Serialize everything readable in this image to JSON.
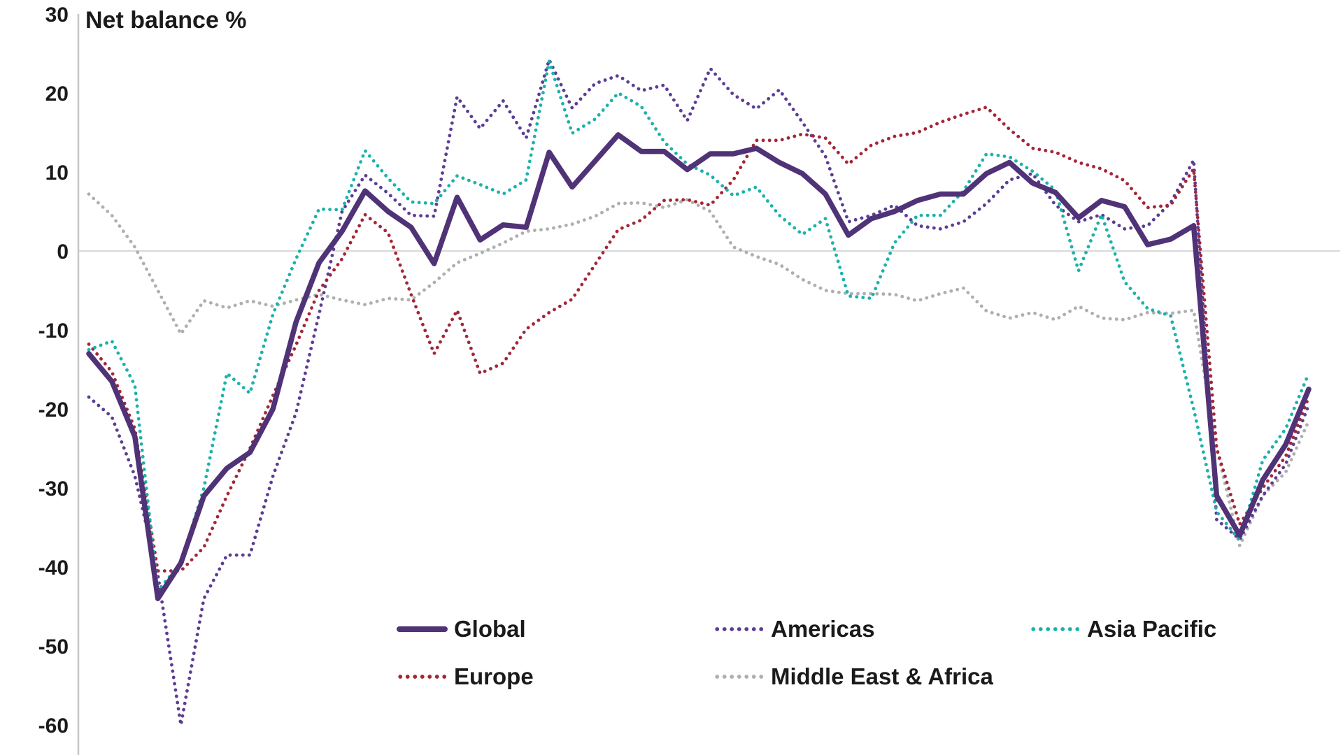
{
  "title": "Net balance %",
  "colors": {
    "global": "#503276",
    "americas": "#5B3D94",
    "asia_pacific": "#1CB2AB",
    "europe": "#A32638",
    "middle_east_africa": "#AFAFAF",
    "zero_line": "#D9D9D9",
    "axis_line": "#C6C6C6",
    "text": "#1a1a1a",
    "background": "#ffffff"
  },
  "y_axis": {
    "label": "Net balance %",
    "ticks": [
      30,
      20,
      10,
      0,
      -10,
      -20,
      -30,
      -40,
      -50,
      -60
    ],
    "min": -60,
    "max": 30
  },
  "x_axis": {
    "labels_visible": false,
    "points": 54
  },
  "legend": {
    "items": [
      {
        "label": "Global",
        "style": "solid",
        "color_key": "global"
      },
      {
        "label": "Americas",
        "style": "dotted",
        "color_key": "americas"
      },
      {
        "label": "Asia Pacific",
        "style": "dotted",
        "color_key": "asia_pacific"
      },
      {
        "label": "Europe",
        "style": "dotted",
        "color_key": "europe"
      },
      {
        "label": "Middle East & Africa",
        "style": "dotted",
        "color_key": "middle_east_africa"
      }
    ]
  },
  "chart_data": {
    "type": "line",
    "title": "Net balance %",
    "xlabel": "",
    "ylabel": "Net balance %",
    "ylim": [
      -60,
      30
    ],
    "grid": "zero-line-only",
    "legend_position": "bottom-center",
    "x": "54 unlabeled quarterly observations",
    "series": [
      {
        "name": "Global",
        "style": "solid",
        "color": "#503276",
        "values": [
          -13,
          -16.5,
          -23.5,
          -44,
          -39.5,
          -31,
          -27.5,
          -25.5,
          -20,
          -9,
          -1.5,
          2.5,
          7.6,
          5,
          3,
          -1.6,
          6.8,
          1.4,
          3.3,
          3,
          12.5,
          8.1,
          11.4,
          14.7,
          12.6,
          12.6,
          10.3,
          12.3,
          12.3,
          13,
          11.2,
          9.8,
          7.2,
          2,
          4.1,
          5,
          6.4,
          7.2,
          7.2,
          9.8,
          11.2,
          8.6,
          7.4,
          4.2,
          6.4,
          5.6,
          0.8,
          1.5,
          3.2,
          -31,
          -36,
          -29,
          -24.5,
          -17.5
        ]
      },
      {
        "name": "Americas",
        "style": "dotted",
        "color": "#5B3D94",
        "values": [
          -18.5,
          -21,
          -28.5,
          -41,
          -60,
          -44,
          -38.5,
          -38.5,
          -28.5,
          -20.5,
          -8,
          5,
          9.6,
          7.3,
          4.5,
          4.4,
          19.5,
          15.5,
          19,
          14.3,
          24.2,
          18.1,
          21.2,
          22.2,
          20.3,
          21,
          16.5,
          23.1,
          19.8,
          18,
          20.4,
          16.3,
          12,
          3.7,
          4.5,
          5.8,
          3.2,
          2.8,
          3.7,
          6,
          9,
          9.8,
          5.8,
          3.7,
          4.6,
          2.8,
          3.2,
          6.1,
          11.5,
          -34,
          -36.5,
          -31,
          -27,
          -19.5
        ]
      },
      {
        "name": "Asia Pacific",
        "style": "dotted",
        "color": "#1CB2AB",
        "values": [
          -12.5,
          -11.4,
          -17,
          -43,
          -39.5,
          -30,
          -15.5,
          -18,
          -8,
          -1,
          5.3,
          5.2,
          12.7,
          9.2,
          6.2,
          6,
          9.5,
          8.4,
          7.2,
          9,
          24,
          14.9,
          16.7,
          20,
          18.3,
          13.8,
          11,
          9.6,
          7,
          8.1,
          4.5,
          2.1,
          4.1,
          -5.7,
          -6,
          1,
          4.5,
          4.5,
          7.6,
          12.3,
          11.9,
          10.1,
          7.7,
          -2.5,
          4.6,
          -3.9,
          -7.3,
          -8.2,
          -20,
          -33,
          -36.6,
          -26.5,
          -22.5,
          -15.5
        ]
      },
      {
        "name": "Europe",
        "style": "dotted",
        "color": "#A32638",
        "values": [
          -11.8,
          -15.3,
          -22.5,
          -40.5,
          -40.5,
          -37.5,
          -31,
          -25,
          -18.3,
          -11.9,
          -5,
          -1,
          4.6,
          2.3,
          -5.5,
          -13,
          -7.5,
          -15.5,
          -14.2,
          -9.9,
          -7.8,
          -6.1,
          -1.7,
          2.7,
          3.9,
          6.4,
          6.5,
          5.8,
          9,
          14,
          14,
          14.8,
          14.3,
          11,
          13.4,
          14.5,
          15,
          16.3,
          17.3,
          18.2,
          15.4,
          13,
          12.5,
          11.2,
          10.4,
          8.9,
          5.5,
          5.8,
          10.4,
          -25,
          -34.6,
          -30,
          -26,
          -18.5
        ]
      },
      {
        "name": "Middle East & Africa",
        "style": "dotted",
        "color": "#AFAFAF",
        "values": [
          7.2,
          4.5,
          0.5,
          -5,
          -10.5,
          -6.3,
          -7.2,
          -6.3,
          -7,
          -6.2,
          -5.5,
          -6.2,
          -6.8,
          -6,
          -6.2,
          -4,
          -1.5,
          -0.3,
          1,
          2.5,
          2.8,
          3.4,
          4.4,
          6,
          6.1,
          5.5,
          6.5,
          5,
          0.5,
          -0.7,
          -1.7,
          -3.6,
          -5,
          -5.4,
          -5.4,
          -5.5,
          -6.3,
          -5.4,
          -4.7,
          -7.6,
          -8.5,
          -7.8,
          -8.7,
          -7,
          -8.5,
          -8.7,
          -7.8,
          -7.9,
          -7.5,
          -25,
          -37.3,
          -31,
          -28,
          -21.5
        ]
      }
    ]
  }
}
